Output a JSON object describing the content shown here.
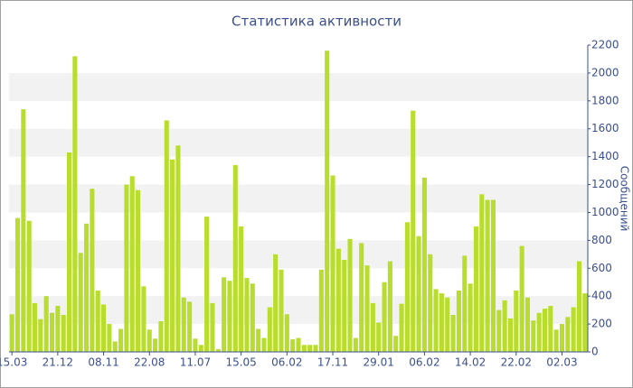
{
  "chart_data": {
    "type": "bar",
    "title": "Статистика активности",
    "y_axis_label": "Сообщений",
    "color": "#b8dd2c",
    "grid": "bands",
    "categories": [
      "15.03",
      null,
      null,
      null,
      null,
      null,
      null,
      null,
      "21.12",
      null,
      null,
      null,
      null,
      null,
      null,
      null,
      "08.11",
      null,
      null,
      null,
      null,
      null,
      null,
      null,
      "22.08",
      null,
      null,
      null,
      null,
      null,
      null,
      null,
      "11.07",
      null,
      null,
      null,
      null,
      null,
      null,
      null,
      "15.05",
      null,
      null,
      null,
      null,
      null,
      null,
      null,
      "06.02",
      null,
      null,
      null,
      null,
      null,
      null,
      null,
      "17.11",
      null,
      null,
      null,
      null,
      null,
      null,
      null,
      "29.01",
      null,
      null,
      null,
      null,
      null,
      null,
      null,
      "06.02",
      null,
      null,
      null,
      null,
      null,
      null,
      null,
      "14.02",
      null,
      null,
      null,
      null,
      null,
      null,
      null,
      "22.02",
      null,
      null,
      null,
      null,
      null,
      null,
      null,
      "02.03",
      null,
      null,
      null,
      null
    ],
    "values": [
      270,
      960,
      1740,
      940,
      350,
      235,
      400,
      280,
      330,
      265,
      1430,
      2120,
      710,
      920,
      1170,
      440,
      340,
      200,
      75,
      165,
      1200,
      1260,
      1160,
      470,
      160,
      95,
      220,
      1660,
      1380,
      1480,
      390,
      360,
      95,
      50,
      970,
      350,
      20,
      535,
      510,
      1340,
      900,
      530,
      490,
      165,
      100,
      320,
      700,
      590,
      270,
      90,
      100,
      50,
      50,
      50,
      590,
      2160,
      1265,
      740,
      660,
      810,
      100,
      780,
      620,
      350,
      210,
      500,
      650,
      115,
      345,
      930,
      1730,
      830,
      1250,
      700,
      450,
      420,
      390,
      265,
      440,
      690,
      490,
      900,
      1130,
      1090,
      1090,
      300,
      370,
      240,
      440,
      760,
      390,
      225,
      280,
      310,
      330,
      160,
      200,
      250,
      320,
      650,
      420
    ],
    "ylim": [
      0,
      2200
    ],
    "yticks": [
      0,
      200,
      400,
      600,
      800,
      1000,
      1200,
      1400,
      1600,
      1800,
      2000,
      2200
    ]
  }
}
